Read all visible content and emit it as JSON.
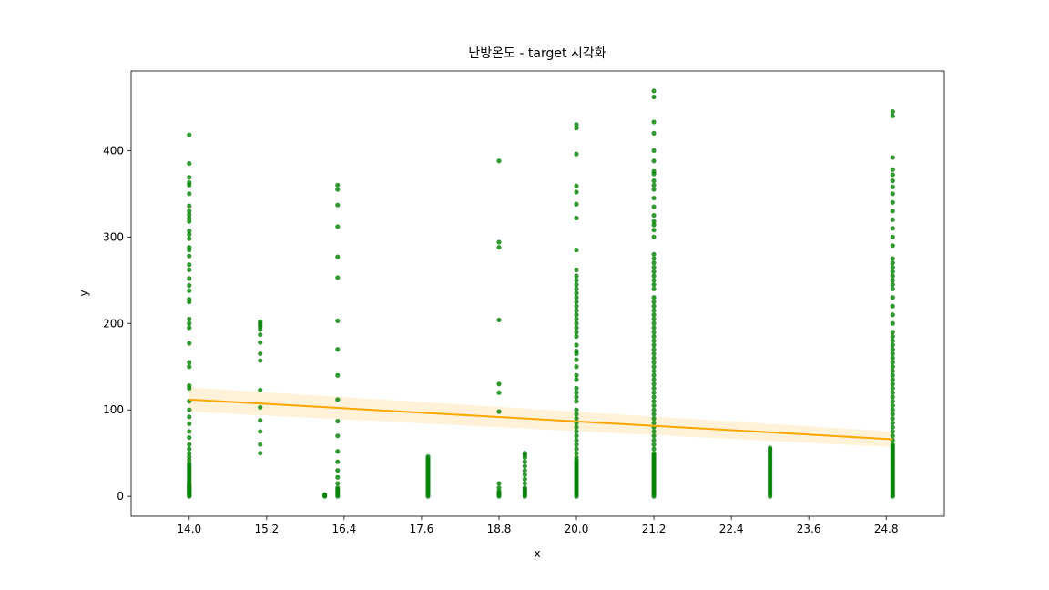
{
  "chart_data": {
    "type": "scatter",
    "title": "난방온도 - target 시각화",
    "xlabel": "x",
    "ylabel": "y",
    "xlim": [
      13.1,
      25.7
    ],
    "ylim": [
      -23,
      492
    ],
    "x_ticks": [
      "14.0",
      "15.2",
      "16.4",
      "17.6",
      "18.8",
      "20.0",
      "21.2",
      "22.4",
      "23.6",
      "24.8"
    ],
    "y_ticks": [
      "0",
      "100",
      "200",
      "300",
      "400"
    ],
    "grid": false,
    "colors": {
      "points": "#008000",
      "regression_line": "#ffa500",
      "confidence_band": "#ffa500"
    },
    "series": [
      {
        "values": [
          {
            "x": 14.0,
            "y": [
              0,
              1,
              2,
              3,
              4,
              5,
              6,
              7,
              8,
              9,
              10,
              11,
              12,
              13,
              14,
              16,
              18,
              20,
              22,
              24,
              26,
              28,
              30,
              32,
              34,
              36,
              38,
              42,
              46,
              50,
              55,
              60,
              68,
              75,
              84,
              92,
              100,
              110,
              125,
              128,
              150,
              155,
              177,
              195,
              200,
              205,
              225,
              228,
              238,
              244,
              252,
              262,
              268,
              278,
              285,
              288,
              298,
              303,
              307,
              318,
              322,
              326,
              330,
              336,
              350,
              360,
              363,
              369,
              385,
              418
            ]
          },
          {
            "x": 15.1,
            "y": [
              50,
              60,
              75,
              88,
              103,
              123,
              157,
              165,
              178,
              187,
              193,
              196,
              198,
              200,
              202
            ]
          },
          {
            "x": 16.1,
            "y": [
              0,
              1,
              2
            ]
          },
          {
            "x": 16.3,
            "y": [
              0,
              2,
              4,
              6,
              8,
              10,
              15,
              22,
              30,
              40,
              52,
              70,
              87,
              112,
              140,
              170,
              203,
              253,
              277,
              312,
              337,
              355,
              360
            ]
          },
          {
            "x": 17.7,
            "y": [
              0,
              2,
              4,
              6,
              8,
              10,
              12,
              14,
              16,
              18,
              20,
              22,
              24,
              26,
              28,
              30,
              32,
              34,
              36,
              38,
              40,
              42,
              44,
              46
            ]
          },
          {
            "x": 18.8,
            "y": [
              0,
              2,
              4,
              6,
              10,
              15,
              98,
              120,
              130,
              204,
              288,
              294,
              388
            ]
          },
          {
            "x": 19.2,
            "y": [
              0,
              2,
              4,
              6,
              8,
              10,
              15,
              20,
              25,
              30,
              35,
              40,
              45,
              48,
              50
            ]
          },
          {
            "x": 20.0,
            "y": [
              0,
              2,
              4,
              6,
              8,
              10,
              12,
              14,
              16,
              18,
              20,
              22,
              24,
              26,
              28,
              30,
              32,
              34,
              36,
              38,
              40,
              42,
              45,
              50,
              55,
              60,
              65,
              70,
              75,
              80,
              85,
              90,
              95,
              100,
              110,
              115,
              120,
              125,
              135,
              140,
              150,
              158,
              165,
              168,
              175,
              185,
              190,
              195,
              200,
              205,
              210,
              215,
              220,
              225,
              230,
              235,
              240,
              245,
              250,
              255,
              262,
              285,
              322,
              338,
              352,
              359,
              396,
              426,
              430
            ]
          },
          {
            "x": 21.2,
            "y": [
              0,
              2,
              4,
              6,
              8,
              10,
              12,
              14,
              16,
              18,
              20,
              22,
              24,
              26,
              28,
              30,
              32,
              34,
              36,
              38,
              40,
              42,
              44,
              46,
              48,
              50,
              55,
              60,
              65,
              70,
              75,
              80,
              85,
              90,
              95,
              100,
              105,
              110,
              115,
              120,
              125,
              130,
              135,
              140,
              145,
              150,
              155,
              160,
              165,
              170,
              175,
              180,
              185,
              190,
              195,
              200,
              205,
              210,
              215,
              220,
              225,
              230,
              240,
              245,
              250,
              255,
              260,
              265,
              270,
              275,
              280,
              300,
              308,
              314,
              318,
              325,
              335,
              345,
              355,
              360,
              365,
              373,
              376,
              388,
              400,
              420,
              433,
              462,
              469
            ]
          },
          {
            "x": 23.0,
            "y": [
              0,
              2,
              4,
              6,
              8,
              10,
              12,
              14,
              16,
              18,
              20,
              22,
              24,
              26,
              28,
              30,
              32,
              34,
              36,
              38,
              40,
              42,
              44,
              46,
              48,
              50,
              52,
              54,
              56
            ]
          },
          {
            "x": 24.9,
            "y": [
              0,
              2,
              4,
              6,
              8,
              10,
              12,
              14,
              16,
              18,
              20,
              22,
              24,
              26,
              28,
              30,
              32,
              34,
              36,
              38,
              40,
              42,
              44,
              46,
              48,
              50,
              52,
              54,
              56,
              58,
              60,
              65,
              70,
              75,
              80,
              85,
              90,
              95,
              100,
              105,
              110,
              115,
              120,
              125,
              130,
              135,
              140,
              145,
              150,
              155,
              160,
              165,
              170,
              175,
              180,
              185,
              190,
              200,
              210,
              220,
              230,
              240,
              245,
              250,
              255,
              260,
              265,
              270,
              275,
              290,
              300,
              310,
              320,
              330,
              340,
              350,
              358,
              365,
              372,
              378,
              392,
              440,
              445
            ]
          }
        ]
      }
    ],
    "regression": {
      "x_start": 14.0,
      "y_start": 112,
      "x_end": 24.9,
      "y_end": 66,
      "ci_half_width_start": 14,
      "ci_half_width_end": 9
    }
  }
}
